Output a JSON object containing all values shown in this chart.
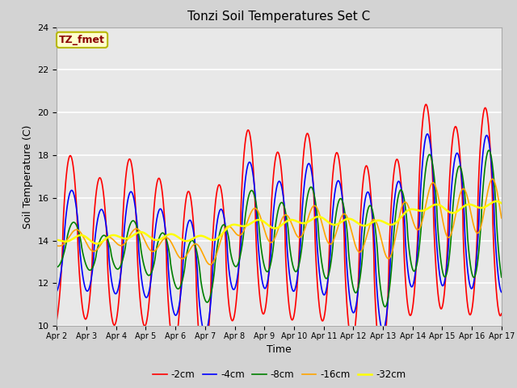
{
  "title": "Tonzi Soil Temperatures Set C",
  "xlabel": "Time",
  "ylabel": "Soil Temperature (C)",
  "ylim": [
    10,
    24
  ],
  "xlim_min": 0,
  "xlim_max": 360,
  "fig_bg": "#d3d3d3",
  "plot_bg": "#e8e8e8",
  "grid_color": "white",
  "annotation_text": "TZ_fmet",
  "annotation_bg": "#ffffcc",
  "annotation_border": "#b8b800",
  "annotation_text_color": "#8b0000",
  "series_colors": [
    "red",
    "blue",
    "green",
    "orange",
    "yellow"
  ],
  "series_labels": [
    "-2cm",
    "-4cm",
    "-8cm",
    "-16cm",
    "-32cm"
  ],
  "x_tick_labels": [
    "Apr 2",
    "Apr 3",
    "Apr 4",
    "Apr 5",
    "Apr 6",
    "Apr 7",
    "Apr 8",
    "Apr 9",
    "Apr 10",
    "Apr 11",
    "Apr 12",
    "Apr 13",
    "Apr 14",
    "Apr 15",
    "Apr 16",
    "Apr 17"
  ],
  "x_tick_positions": [
    0,
    24,
    48,
    72,
    96,
    120,
    144,
    168,
    192,
    216,
    240,
    264,
    288,
    312,
    336,
    360
  ],
  "yticks": [
    10,
    12,
    14,
    16,
    18,
    20,
    22,
    24
  ]
}
